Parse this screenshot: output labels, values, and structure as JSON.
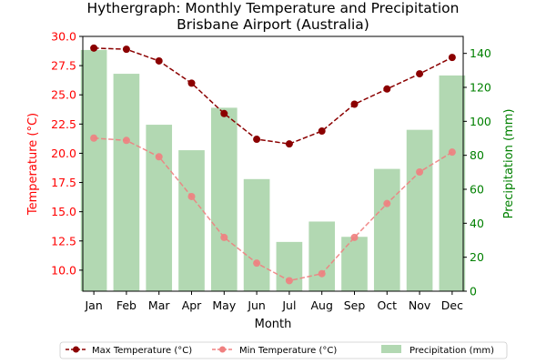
{
  "chart_data": {
    "type": "bar+line",
    "title": "Hythergraph: Monthly Temperature and Precipitation",
    "subtitle": "Brisbane Airport (Australia)",
    "xlabel": "Month",
    "ylabel_left": "Temperature (°C)",
    "ylabel_right": "Precipitation (mm)",
    "categories": [
      "Jan",
      "Feb",
      "Mar",
      "Apr",
      "May",
      "Jun",
      "Jul",
      "Aug",
      "Sep",
      "Oct",
      "Nov",
      "Dec"
    ],
    "ylim_left": [
      8.2,
      30.0
    ],
    "ylim_right": [
      0,
      150
    ],
    "yticks_left": [
      "10.0",
      "12.5",
      "15.0",
      "17.5",
      "20.0",
      "22.5",
      "25.0",
      "27.5",
      "30.0"
    ],
    "yticks_right": [
      "0",
      "20",
      "40",
      "60",
      "80",
      "100",
      "120",
      "140"
    ],
    "series": [
      {
        "name": "Max Temperature (°C)",
        "kind": "line",
        "axis": "left",
        "color": "#8b0000",
        "values": [
          29.0,
          28.9,
          27.9,
          26.0,
          23.4,
          21.2,
          20.8,
          21.9,
          24.2,
          25.5,
          26.8,
          28.2
        ]
      },
      {
        "name": "Min Temperature (°C)",
        "kind": "line",
        "axis": "left",
        "color": "#f08080",
        "values": [
          21.3,
          21.1,
          19.7,
          16.3,
          12.8,
          10.6,
          9.1,
          9.7,
          12.8,
          15.7,
          18.4,
          20.1
        ]
      },
      {
        "name": "Precipitation (mm)",
        "kind": "bar",
        "axis": "right",
        "color": "#b2d8b2",
        "values": [
          142,
          128,
          98,
          83,
          108,
          66,
          29,
          41,
          32,
          72,
          95,
          127
        ]
      }
    ],
    "left_axis_color": "#ff0000",
    "right_axis_color": "#008000",
    "grid": false,
    "legend_position": "bottom-center"
  }
}
